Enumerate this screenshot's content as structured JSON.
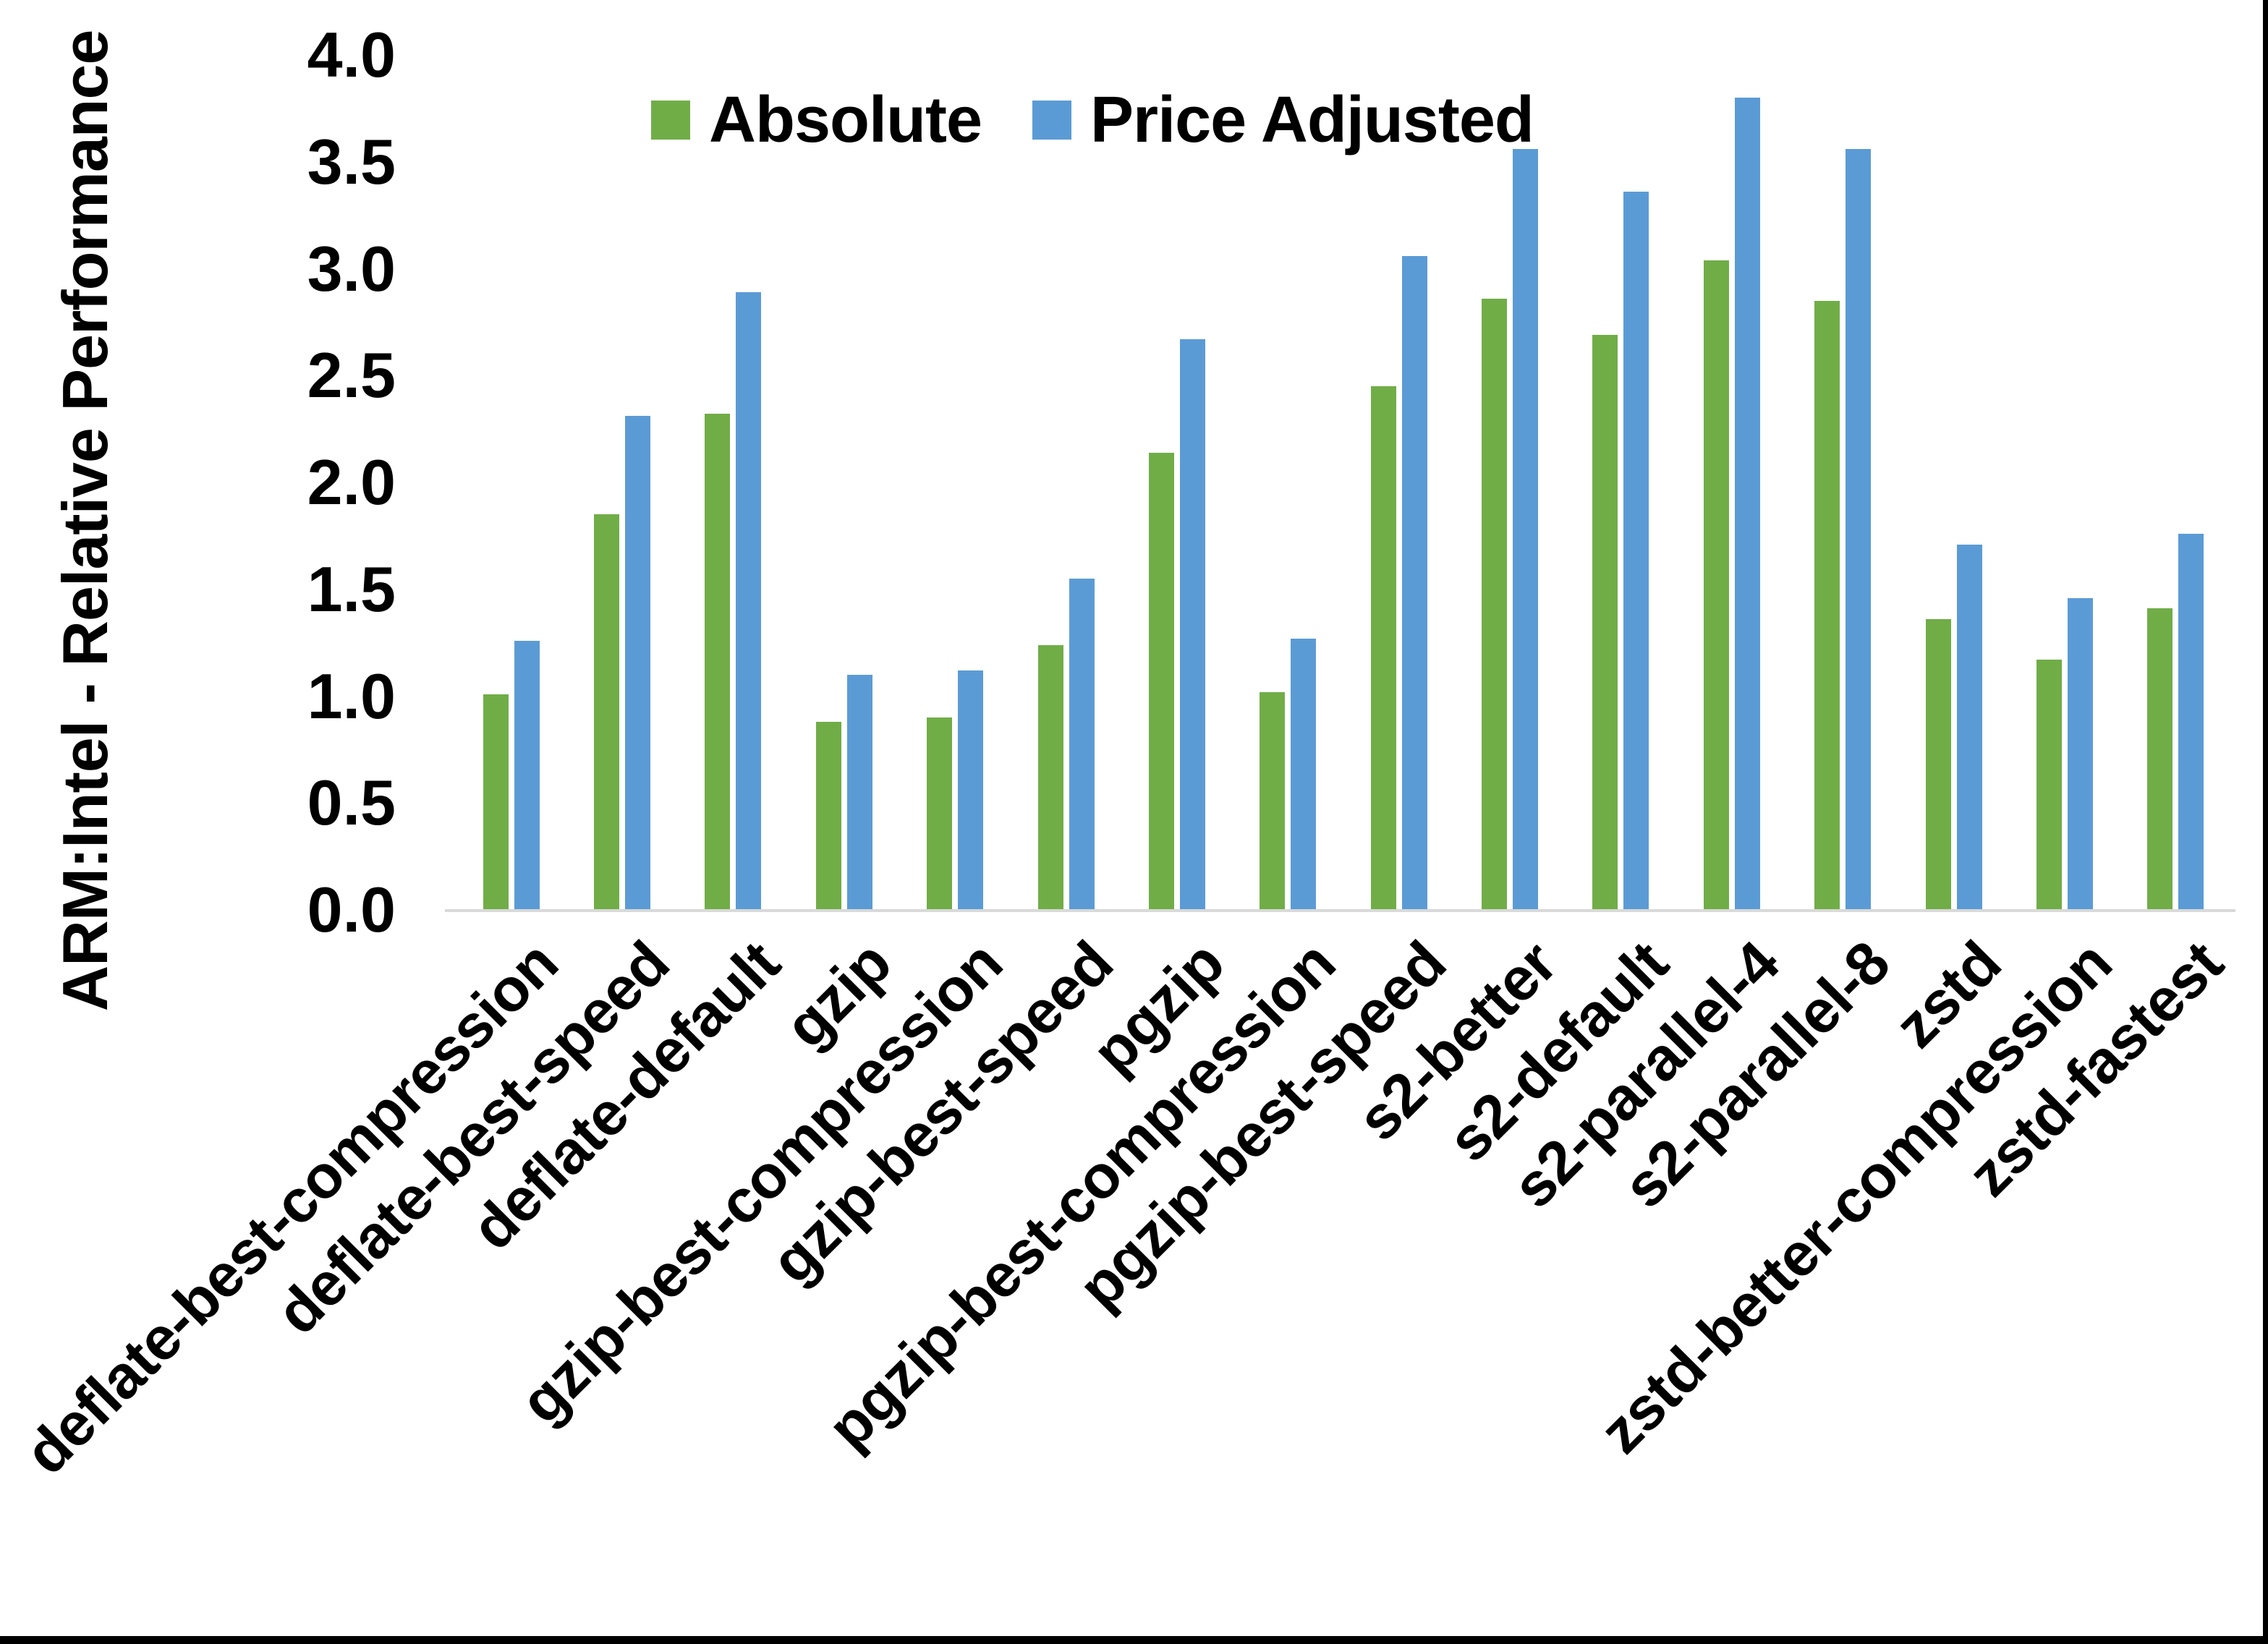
{
  "chart_data": {
    "type": "bar",
    "title": "",
    "xlabel": "",
    "ylabel": "ARM:Intel - Relative Performance",
    "ylim": [
      0.0,
      4.0
    ],
    "ytick_step": 0.5,
    "yticks": [
      "4.0",
      "3.5",
      "3.0",
      "2.5",
      "2.0",
      "1.5",
      "1.0",
      "0.5",
      "0.0"
    ],
    "grid": false,
    "legend_position": "top-center",
    "categories": [
      "deflate-best-compression",
      "deflate-best-speed",
      "deflate-default",
      "gzip",
      "gzip-best-compression",
      "gzip-best-speed",
      "pgzip",
      "pgzip-best-compression",
      "pgzip-best-speed",
      "s2-better",
      "s2-default",
      "s2-parallel-4",
      "s2-parallel-8",
      "zstd",
      "zstd-better-compression",
      "zstd-fastest"
    ],
    "series": [
      {
        "name": "Absolute",
        "color": "#70AD47",
        "values": [
          1.01,
          1.85,
          2.32,
          0.88,
          0.9,
          1.24,
          2.14,
          1.02,
          2.45,
          2.86,
          2.69,
          3.04,
          2.85,
          1.36,
          1.17,
          1.41
        ]
      },
      {
        "name": "Price Adjusted",
        "color": "#5B9BD5",
        "values": [
          1.26,
          2.31,
          2.89,
          1.1,
          1.12,
          1.55,
          2.67,
          1.27,
          3.06,
          3.56,
          3.36,
          3.8,
          3.56,
          1.71,
          1.46,
          1.76
        ]
      }
    ]
  },
  "colors": {
    "background": "#FFFFFF",
    "axis_line": "#D9D9D9",
    "text": "#000000",
    "frame": "#000000"
  }
}
